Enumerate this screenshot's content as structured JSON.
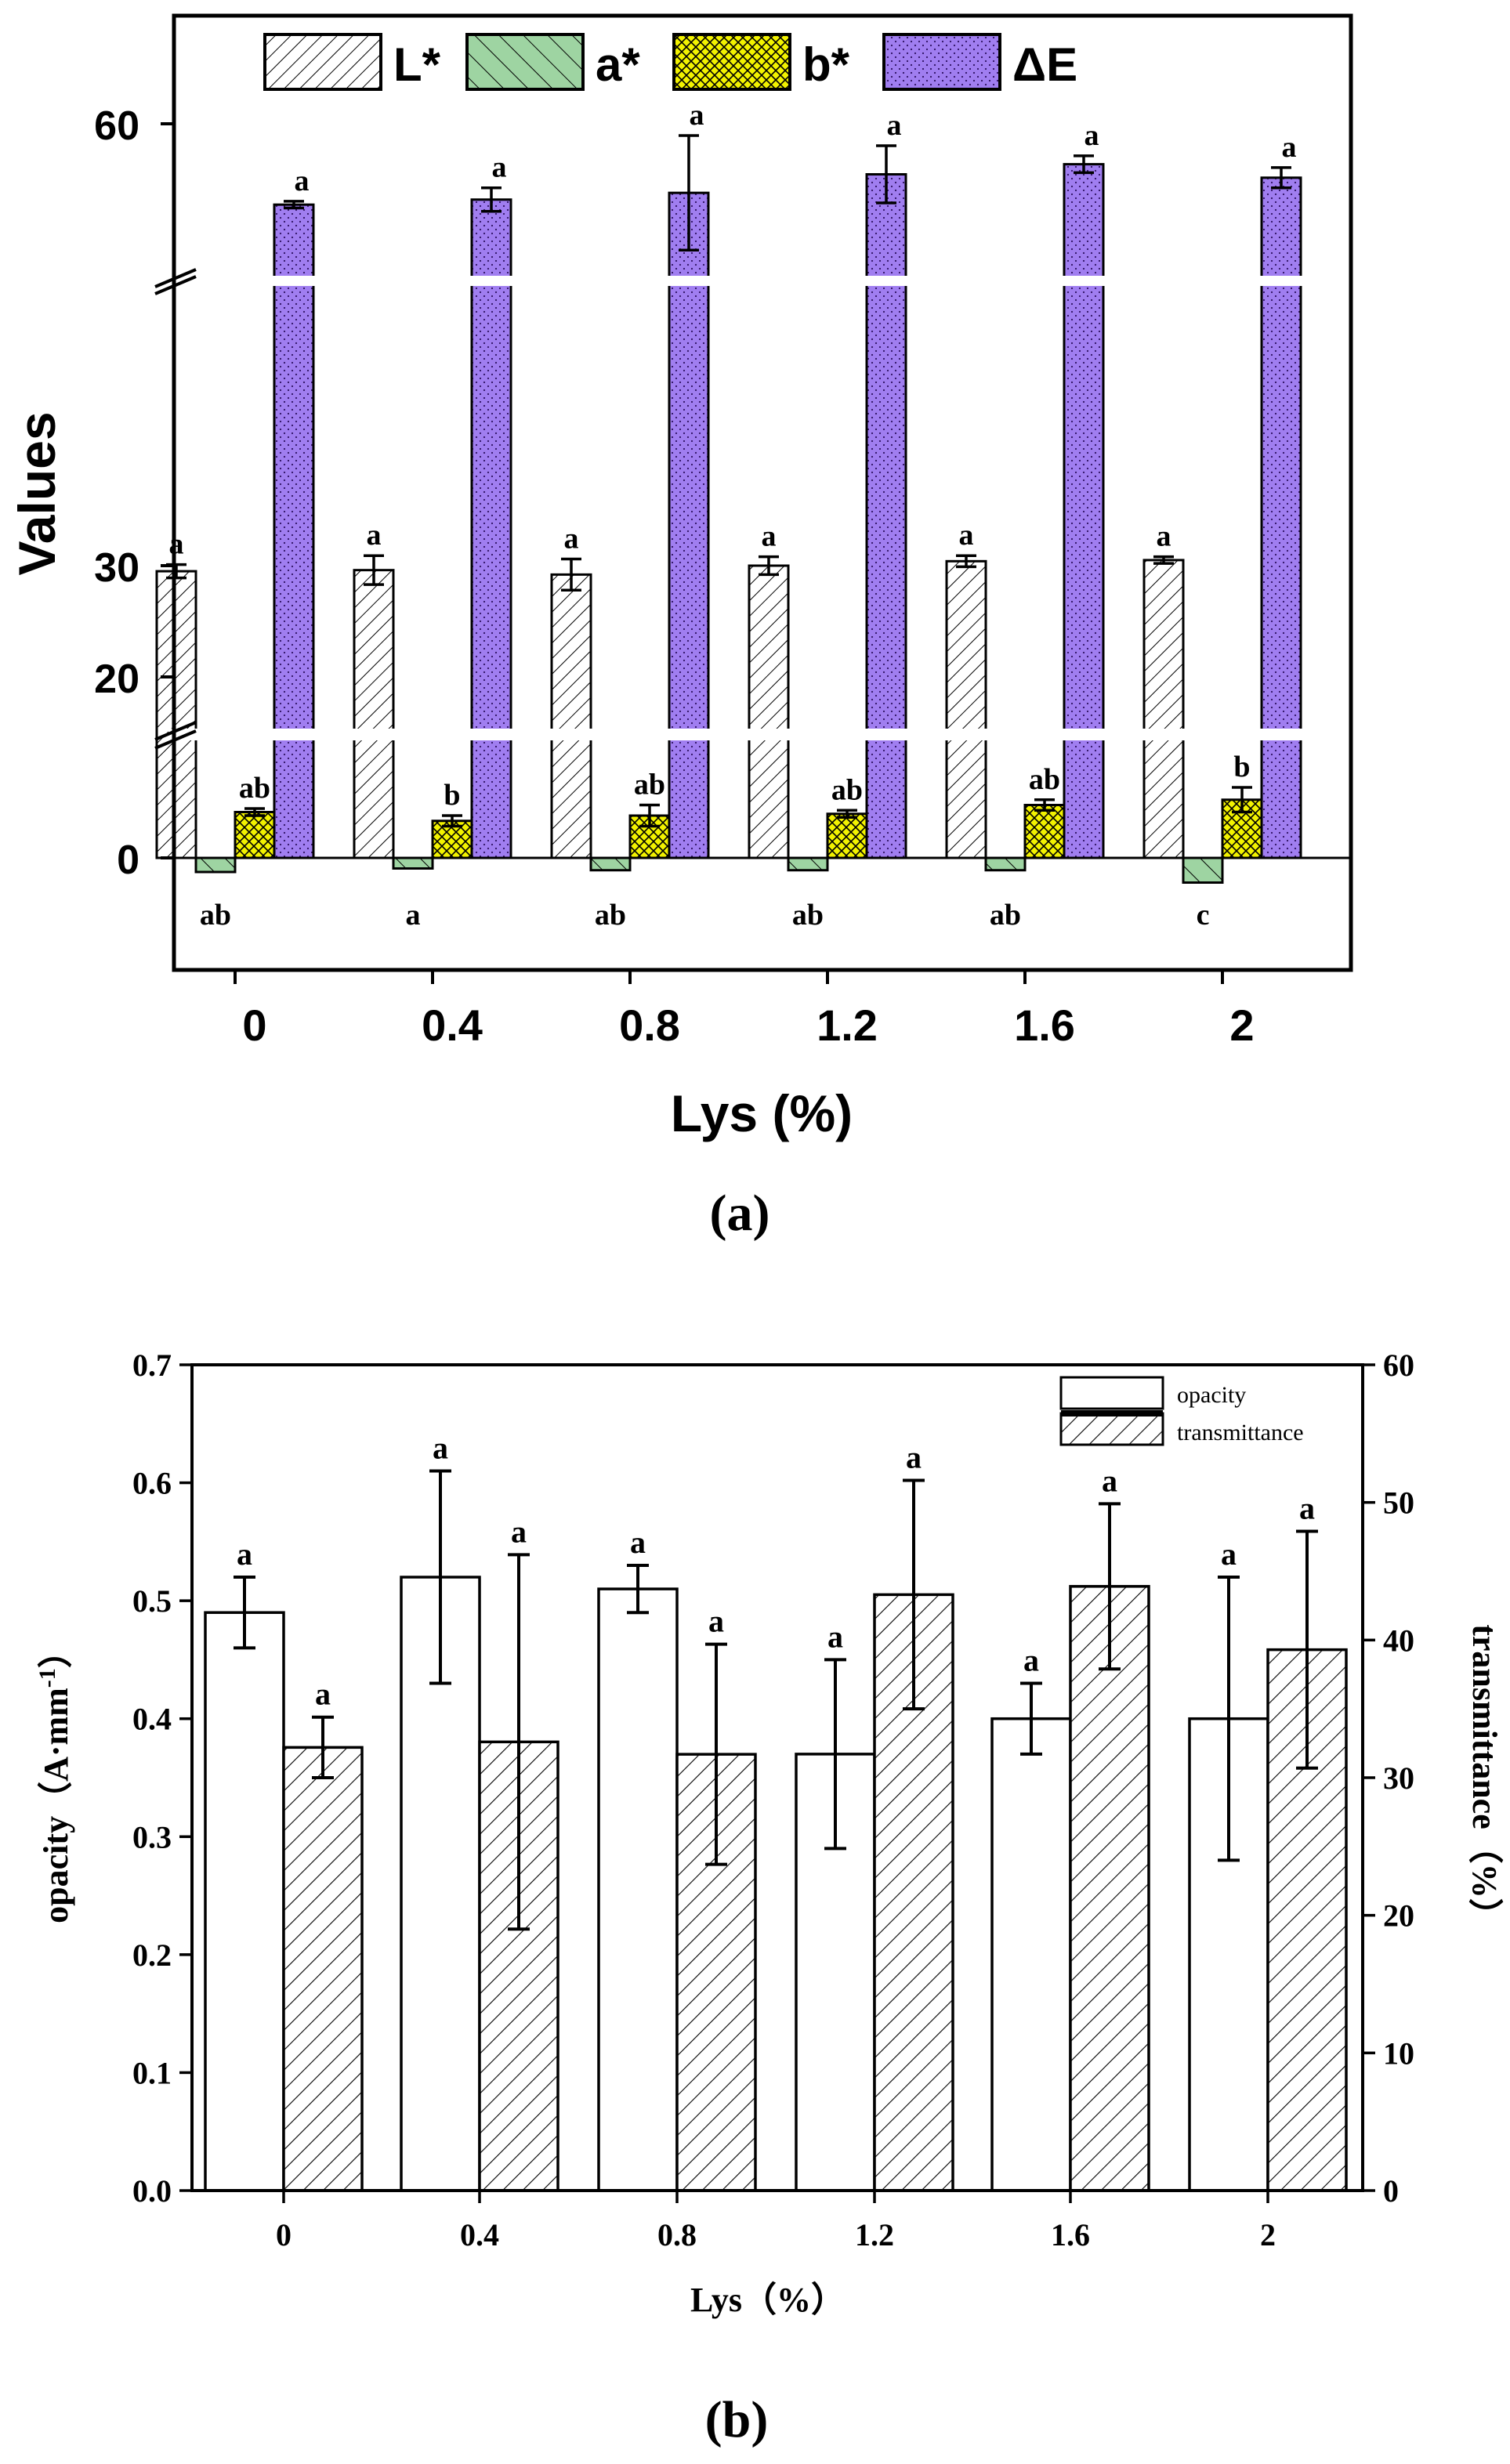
{
  "chart_data": [
    {
      "type": "bar",
      "panel_label": "(a)",
      "xlabel": "Lys (%)",
      "ylabel": "Values",
      "categories": [
        "0",
        "0.4",
        "0.8",
        "1.2",
        "1.6",
        "2"
      ],
      "y_ticks": [
        "0",
        "20",
        "30",
        "60"
      ],
      "y_axis_breaks": [
        [
          4,
          15
        ],
        [
          35,
          50
        ]
      ],
      "legend_position": "top",
      "series": [
        {
          "name": "L*",
          "pattern": "diagonal-hatch",
          "color": "#ffffff",
          "values": [
            29.5,
            29.6,
            29.2,
            30.0,
            30.4,
            30.5
          ],
          "errors": [
            0.6,
            1.3,
            1.4,
            0.8,
            0.5,
            0.3
          ],
          "letters": [
            "a",
            "a",
            "a",
            "a",
            "a",
            "a"
          ]
        },
        {
          "name": "a*",
          "pattern": "wide-diagonal-hatch",
          "color": "#9ed4a2",
          "values": [
            -0.8,
            -0.6,
            -0.7,
            -0.7,
            -0.7,
            -1.4
          ],
          "errors": [
            0.1,
            0.1,
            0.1,
            0.1,
            0.1,
            0.1
          ],
          "letters": [
            "ab",
            "a",
            "ab",
            "ab",
            "ab",
            "c"
          ]
        },
        {
          "name": "b*",
          "pattern": "crosshatch",
          "color": "#f2f200",
          "values": [
            2.6,
            2.1,
            2.4,
            2.5,
            3.0,
            3.3
          ],
          "errors": [
            0.2,
            0.3,
            0.6,
            0.2,
            0.3,
            0.7
          ],
          "letters": [
            "ab",
            "b",
            "ab",
            "ab",
            "ab",
            "b"
          ]
        },
        {
          "name": "ΔE",
          "pattern": "dots",
          "color": "#a07ef0",
          "values": [
            55.2,
            55.5,
            55.9,
            57.0,
            57.6,
            56.8
          ],
          "errors": [
            0.2,
            0.7,
            3.4,
            1.7,
            0.5,
            0.6
          ],
          "letters": [
            "a",
            "a",
            "a",
            "a",
            "a",
            "a"
          ]
        }
      ]
    },
    {
      "type": "bar",
      "panel_label": "(b)",
      "xlabel": "Lys（%）",
      "ylabel": "opacity（A·mm",
      "ylabel_superscript": "-1",
      "ylabel_close": "）",
      "y2label": "transmittance（%）",
      "categories": [
        "0",
        "0.4",
        "0.8",
        "1.2",
        "1.6",
        "2"
      ],
      "ylim": [
        0,
        0.7
      ],
      "y_ticks": [
        "0.0",
        "0.1",
        "0.2",
        "0.3",
        "0.4",
        "0.5",
        "0.6",
        "0.7"
      ],
      "y2lim": [
        0,
        60
      ],
      "y2_ticks": [
        "0",
        "10",
        "20",
        "30",
        "40",
        "50",
        "60"
      ],
      "legend_position": "top-right",
      "series": [
        {
          "name": "opacity",
          "axis": "left",
          "pattern": "none",
          "color": "#ffffff",
          "values": [
            0.49,
            0.52,
            0.51,
            0.37,
            0.4,
            0.4
          ],
          "errors": [
            0.03,
            0.09,
            0.02,
            0.08,
            0.03,
            0.12
          ],
          "letters": [
            "a",
            "a",
            "a",
            "a",
            "a",
            "a"
          ]
        },
        {
          "name": "transmittance",
          "axis": "right",
          "pattern": "diagonal-hatch",
          "color": "#ffffff",
          "values": [
            32.2,
            32.6,
            31.7,
            43.3,
            43.9,
            39.3
          ],
          "errors": [
            2.2,
            13.6,
            8.0,
            8.3,
            6.0,
            8.6
          ],
          "letters": [
            "a",
            "a",
            "a",
            "a",
            "a",
            "a"
          ]
        }
      ]
    }
  ]
}
